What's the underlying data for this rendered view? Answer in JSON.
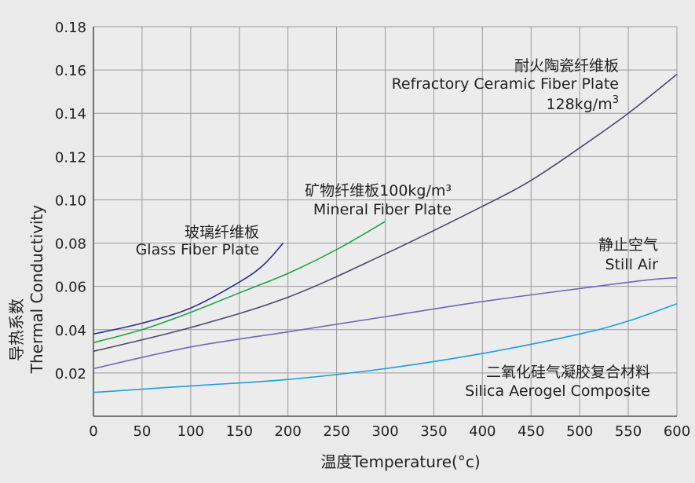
{
  "chart_data": {
    "type": "line",
    "xlabel": "温度Temperature(°c)",
    "ylabel_cn": "导热系数",
    "ylabel_en": "Thermal Conductivity",
    "xlim": [
      0,
      600
    ],
    "ylim": [
      0,
      0.18
    ],
    "x_ticks": [
      0,
      50,
      100,
      150,
      200,
      250,
      300,
      350,
      400,
      450,
      500,
      550,
      600
    ],
    "y_ticks": [
      0.02,
      0.04,
      0.06,
      0.08,
      0.1,
      0.12,
      0.14,
      0.16,
      0.18
    ],
    "y_tick_labels": [
      "0.02",
      "0.04",
      "0.06",
      "0.08",
      "0.10",
      "0.12",
      "0.14",
      "0.16",
      "0.18"
    ],
    "x_tick_labels": [
      "0",
      "50",
      "100",
      "150",
      "200",
      "250",
      "300",
      "350",
      "400",
      "450",
      "500",
      "550",
      "600"
    ],
    "grid": true,
    "series": [
      {
        "key": "glass",
        "label_cn": "玻璃纤维板",
        "label_en": "Glass Fiber Plate",
        "color": "#2b2f8f",
        "x": [
          0,
          50,
          100,
          150,
          175,
          195
        ],
        "y": [
          0.038,
          0.043,
          0.05,
          0.062,
          0.07,
          0.08
        ]
      },
      {
        "key": "mineral",
        "label_cn": "矿物纤维板100kg/m³",
        "label_en": "Mineral Fiber Plate",
        "color": "#1fa34a",
        "x": [
          0,
          50,
          100,
          150,
          200,
          250,
          300
        ],
        "y": [
          0.034,
          0.04,
          0.048,
          0.057,
          0.066,
          0.077,
          0.09
        ]
      },
      {
        "key": "ceramic",
        "label_cn": "耐火陶瓷纤维板",
        "label_en": "Refractory Ceramic Fiber Plate",
        "label_extra": "128kg/m",
        "label_extra_sup": "3",
        "color": "#4a4a6a",
        "x": [
          0,
          100,
          200,
          300,
          400,
          450,
          500,
          550,
          600
        ],
        "y": [
          0.03,
          0.041,
          0.055,
          0.075,
          0.097,
          0.109,
          0.124,
          0.14,
          0.158
        ]
      },
      {
        "key": "air",
        "label_cn": "静止空气",
        "label_en": "Still Air",
        "color": "#6f68b8",
        "x": [
          0,
          100,
          200,
          300,
          400,
          500,
          570,
          600
        ],
        "y": [
          0.022,
          0.032,
          0.039,
          0.046,
          0.053,
          0.059,
          0.063,
          0.064
        ]
      },
      {
        "key": "aerogel",
        "label_cn": "二氧化硅气凝胶复合材料",
        "label_en": "Silica Aerogel Composite",
        "color": "#1aa0e0",
        "x": [
          0,
          100,
          200,
          300,
          400,
          500,
          550,
          600
        ],
        "y": [
          0.011,
          0.014,
          0.017,
          0.022,
          0.029,
          0.038,
          0.044,
          0.052
        ]
      }
    ]
  }
}
